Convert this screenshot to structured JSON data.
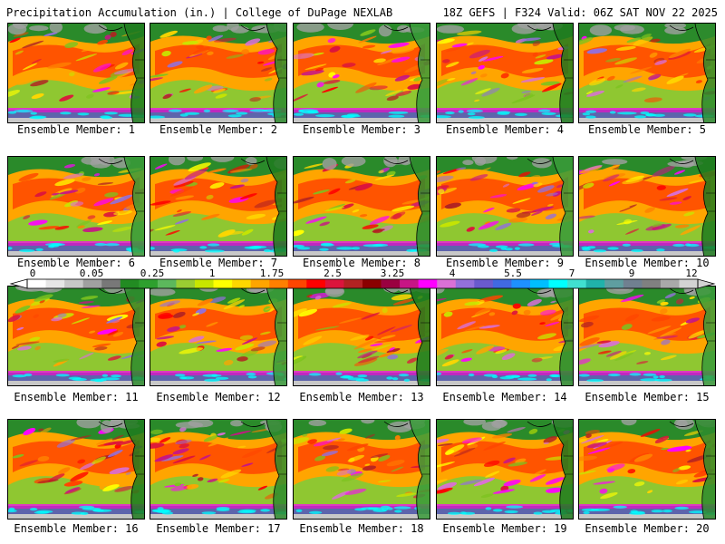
{
  "header": {
    "left": "Precipitation Accumulation (in.) | College of DuPage NEXLAB",
    "right": "18Z GEFS | F324 Valid: 06Z SAT NOV 22 2025"
  },
  "members": [
    {
      "label": "Ensemble Member: 1"
    },
    {
      "label": "Ensemble Member: 2"
    },
    {
      "label": "Ensemble Member: 3"
    },
    {
      "label": "Ensemble Member: 4"
    },
    {
      "label": "Ensemble Member: 5"
    },
    {
      "label": "Ensemble Member: 6"
    },
    {
      "label": "Ensemble Member: 7"
    },
    {
      "label": "Ensemble Member: 8"
    },
    {
      "label": "Ensemble Member: 9"
    },
    {
      "label": "Ensemble Member: 10"
    },
    {
      "label": "Ensemble Member: 11"
    },
    {
      "label": "Ensemble Member: 12"
    },
    {
      "label": "Ensemble Member: 13"
    },
    {
      "label": "Ensemble Member: 14"
    },
    {
      "label": "Ensemble Member: 15"
    },
    {
      "label": "Ensemble Member: 16"
    },
    {
      "label": "Ensemble Member: 17"
    },
    {
      "label": "Ensemble Member: 18"
    },
    {
      "label": "Ensemble Member: 19"
    },
    {
      "label": "Ensemble Member: 20"
    }
  ],
  "colorbar": {
    "labels": [
      "0",
      "0.05",
      "0.25",
      "1",
      "1.75",
      "2.5",
      "3.25",
      "4",
      "5.5",
      "7",
      "9",
      "12"
    ],
    "colors": [
      "#ffffff",
      "#e6e6e6",
      "#c8c8c8",
      "#a0a0a0",
      "#787878",
      "#228b22",
      "#2ea02e",
      "#5cb85c",
      "#9acd32",
      "#c8e600",
      "#ffff00",
      "#ffd700",
      "#ffa500",
      "#ff7f00",
      "#ff4500",
      "#ff0000",
      "#dc143c",
      "#b22222",
      "#8b0000",
      "#9b0040",
      "#c71585",
      "#ff00ff",
      "#da70d6",
      "#9370db",
      "#6a5acd",
      "#4169e1",
      "#1e90ff",
      "#00bfff",
      "#00ffff",
      "#40e0d0",
      "#20b2aa",
      "#5f9ea0",
      "#708090",
      "#808080",
      "#a9a9a9",
      "#d3d3d3"
    ]
  }
}
